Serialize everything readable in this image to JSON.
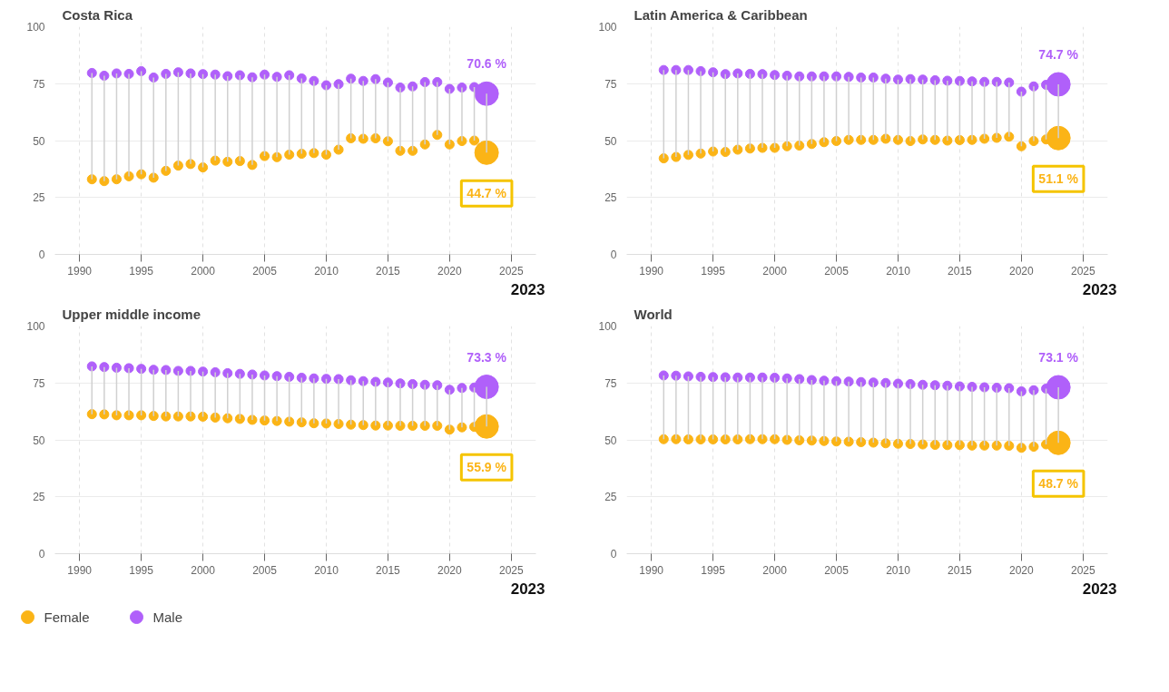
{
  "chart_data": [
    {
      "type": "bubble",
      "title": "Costa Rica",
      "x": [
        1991,
        1992,
        1993,
        1994,
        1995,
        1996,
        1997,
        1998,
        1999,
        2000,
        2001,
        2002,
        2003,
        2004,
        2005,
        2006,
        2007,
        2008,
        2009,
        2010,
        2011,
        2012,
        2013,
        2014,
        2015,
        2016,
        2017,
        2018,
        2019,
        2020,
        2021,
        2022,
        2023
      ],
      "xlim": [
        1988,
        2027
      ],
      "xticks": [
        1990,
        1995,
        2000,
        2005,
        2010,
        2015,
        2020,
        2025
      ],
      "ylim": [
        0,
        100
      ],
      "yticks": [
        0,
        25,
        50,
        75,
        100
      ],
      "grid": true,
      "annotations": [
        "2023"
      ],
      "series": [
        {
          "color": "#fbb416",
          "values": [
            33.0,
            32.2,
            33.0,
            34.3,
            35.2,
            33.7,
            36.7,
            39.0,
            39.7,
            38.2,
            41.2,
            40.7,
            41.0,
            39.3,
            43.2,
            42.7,
            43.8,
            44.2,
            44.5,
            43.8,
            46.0,
            51.0,
            50.8,
            51.0,
            49.7,
            45.5,
            45.5,
            48.3,
            52.5,
            48.3,
            49.8,
            50.0,
            44.7
          ],
          "sizes": [
            0.15,
            0.15,
            0.15,
            0.15,
            0.15,
            0.15,
            0.15,
            0.15,
            0.15,
            0.15,
            0.15,
            0.15,
            0.15,
            0.15,
            0.15,
            0.15,
            0.15,
            0.15,
            0.15,
            0.15,
            0.15,
            0.15,
            0.15,
            0.15,
            0.15,
            0.15,
            0.15,
            0.15,
            0.15,
            0.15,
            0.15,
            0.15,
            1
          ],
          "errors": [
            [
              33.0,
              79.7
            ],
            [
              32.2,
              78.5
            ],
            [
              33.0,
              79.5
            ],
            [
              34.3,
              79.3
            ],
            [
              35.2,
              80.5
            ],
            [
              33.7,
              77.7
            ],
            [
              36.7,
              79.3
            ],
            [
              39.0,
              80.0
            ],
            [
              39.7,
              79.5
            ],
            [
              38.2,
              79.2
            ],
            [
              41.2,
              79.0
            ],
            [
              40.7,
              78.3
            ],
            [
              41.0,
              78.7
            ],
            [
              39.3,
              77.8
            ],
            [
              43.2,
              79.0
            ],
            [
              42.7,
              78.0
            ],
            [
              43.8,
              78.7
            ],
            [
              44.2,
              77.3
            ],
            [
              44.5,
              76.2
            ],
            [
              43.8,
              74.3
            ],
            [
              46.0,
              74.8
            ],
            [
              51.0,
              77.2
            ],
            [
              50.8,
              76.2
            ],
            [
              51.0,
              77.0
            ],
            [
              49.7,
              75.5
            ],
            [
              45.5,
              73.3
            ],
            [
              45.5,
              73.8
            ],
            [
              48.3,
              75.7
            ],
            [
              52.5,
              75.7
            ],
            [
              48.3,
              72.7
            ],
            [
              49.8,
              73.3
            ],
            [
              50.0,
              73.5
            ],
            [
              44.7,
              70.6
            ]
          ],
          "value_labels": [
            null,
            null,
            null,
            null,
            null,
            null,
            null,
            null,
            null,
            null,
            null,
            null,
            null,
            null,
            null,
            null,
            null,
            null,
            null,
            null,
            null,
            null,
            null,
            null,
            null,
            null,
            null,
            null,
            null,
            null,
            null,
            null,
            "44.7 %"
          ]
        },
        {
          "color": "#b060fa",
          "values": [
            79.7,
            78.5,
            79.5,
            79.3,
            80.5,
            77.7,
            79.3,
            80.0,
            79.5,
            79.2,
            79.0,
            78.3,
            78.7,
            77.8,
            79.0,
            78.0,
            78.7,
            77.3,
            76.2,
            74.3,
            74.8,
            77.2,
            76.2,
            77.0,
            75.5,
            73.3,
            73.8,
            75.7,
            75.7,
            72.7,
            73.3,
            73.5,
            70.6
          ],
          "sizes": [
            0.15,
            0.15,
            0.15,
            0.15,
            0.15,
            0.15,
            0.15,
            0.15,
            0.15,
            0.15,
            0.15,
            0.15,
            0.15,
            0.15,
            0.15,
            0.15,
            0.15,
            0.15,
            0.15,
            0.15,
            0.15,
            0.15,
            0.15,
            0.15,
            0.15,
            0.15,
            0.15,
            0.15,
            0.15,
            0.15,
            0.15,
            0.15,
            1
          ],
          "value_labels": [
            null,
            null,
            null,
            null,
            null,
            null,
            null,
            null,
            null,
            null,
            null,
            null,
            null,
            null,
            null,
            null,
            null,
            null,
            null,
            null,
            null,
            null,
            null,
            null,
            null,
            null,
            null,
            null,
            null,
            null,
            null,
            null,
            "70.6 %"
          ]
        }
      ]
    },
    {
      "type": "bubble",
      "title": "Latin America & Caribbean",
      "x": [
        1991,
        1992,
        1993,
        1994,
        1995,
        1996,
        1997,
        1998,
        1999,
        2000,
        2001,
        2002,
        2003,
        2004,
        2005,
        2006,
        2007,
        2008,
        2009,
        2010,
        2011,
        2012,
        2013,
        2014,
        2015,
        2016,
        2017,
        2018,
        2019,
        2020,
        2021,
        2022,
        2023
      ],
      "xlim": [
        1988,
        2027
      ],
      "xticks": [
        1990,
        1995,
        2000,
        2005,
        2010,
        2015,
        2020,
        2025
      ],
      "ylim": [
        0,
        100
      ],
      "yticks": [
        0,
        25,
        50,
        75,
        100
      ],
      "grid": true,
      "annotations": [
        "2023"
      ],
      "series": [
        {
          "color": "#fbb416",
          "values": [
            42.2,
            42.8,
            43.7,
            44.3,
            45.2,
            45.0,
            46.0,
            46.5,
            46.8,
            46.8,
            47.5,
            47.8,
            48.5,
            49.3,
            49.8,
            50.3,
            50.3,
            50.3,
            50.8,
            50.3,
            49.8,
            50.5,
            50.3,
            50.0,
            50.2,
            50.3,
            50.8,
            51.2,
            51.7,
            47.5,
            49.8,
            50.5,
            51.1
          ],
          "sizes": [
            0.15,
            0.15,
            0.15,
            0.15,
            0.15,
            0.15,
            0.15,
            0.15,
            0.15,
            0.15,
            0.15,
            0.15,
            0.15,
            0.15,
            0.15,
            0.15,
            0.15,
            0.15,
            0.15,
            0.15,
            0.15,
            0.15,
            0.15,
            0.15,
            0.15,
            0.15,
            0.15,
            0.15,
            0.15,
            0.15,
            0.15,
            0.15,
            1
          ],
          "errors": [
            [
              42.2,
              81.0
            ],
            [
              42.8,
              81.0
            ],
            [
              43.7,
              81.0
            ],
            [
              44.3,
              80.5
            ],
            [
              45.2,
              80.0
            ],
            [
              45.0,
              79.2
            ],
            [
              46.0,
              79.5
            ],
            [
              46.5,
              79.3
            ],
            [
              46.8,
              79.2
            ],
            [
              46.8,
              78.8
            ],
            [
              47.5,
              78.5
            ],
            [
              47.8,
              78.2
            ],
            [
              48.5,
              78.2
            ],
            [
              49.3,
              78.2
            ],
            [
              49.8,
              78.2
            ],
            [
              50.3,
              78.0
            ],
            [
              50.3,
              77.7
            ],
            [
              50.3,
              77.7
            ],
            [
              50.8,
              77.2
            ],
            [
              50.3,
              76.8
            ],
            [
              49.8,
              77.0
            ],
            [
              50.5,
              76.8
            ],
            [
              50.3,
              76.5
            ],
            [
              50.0,
              76.3
            ],
            [
              50.2,
              76.2
            ],
            [
              50.3,
              76.0
            ],
            [
              50.8,
              75.8
            ],
            [
              51.2,
              75.8
            ],
            [
              51.7,
              75.5
            ],
            [
              47.5,
              71.5
            ],
            [
              49.8,
              73.8
            ],
            [
              50.5,
              74.5
            ],
            [
              51.1,
              74.7
            ]
          ],
          "value_labels": [
            null,
            null,
            null,
            null,
            null,
            null,
            null,
            null,
            null,
            null,
            null,
            null,
            null,
            null,
            null,
            null,
            null,
            null,
            null,
            null,
            null,
            null,
            null,
            null,
            null,
            null,
            null,
            null,
            null,
            null,
            null,
            null,
            "51.1 %"
          ]
        },
        {
          "color": "#b060fa",
          "values": [
            81.0,
            81.0,
            81.0,
            80.5,
            80.0,
            79.2,
            79.5,
            79.3,
            79.2,
            78.8,
            78.5,
            78.2,
            78.2,
            78.2,
            78.2,
            78.0,
            77.7,
            77.7,
            77.2,
            76.8,
            77.0,
            76.8,
            76.5,
            76.3,
            76.2,
            76.0,
            75.8,
            75.8,
            75.5,
            71.5,
            73.8,
            74.5,
            74.7
          ],
          "sizes": [
            0.15,
            0.15,
            0.15,
            0.15,
            0.15,
            0.15,
            0.15,
            0.15,
            0.15,
            0.15,
            0.15,
            0.15,
            0.15,
            0.15,
            0.15,
            0.15,
            0.15,
            0.15,
            0.15,
            0.15,
            0.15,
            0.15,
            0.15,
            0.15,
            0.15,
            0.15,
            0.15,
            0.15,
            0.15,
            0.15,
            0.15,
            0.15,
            1
          ],
          "value_labels": [
            null,
            null,
            null,
            null,
            null,
            null,
            null,
            null,
            null,
            null,
            null,
            null,
            null,
            null,
            null,
            null,
            null,
            null,
            null,
            null,
            null,
            null,
            null,
            null,
            null,
            null,
            null,
            null,
            null,
            null,
            null,
            null,
            "74.7 %"
          ]
        }
      ]
    },
    {
      "type": "bubble",
      "title": "Upper middle income",
      "x": [
        1991,
        1992,
        1993,
        1994,
        1995,
        1996,
        1997,
        1998,
        1999,
        2000,
        2001,
        2002,
        2003,
        2004,
        2005,
        2006,
        2007,
        2008,
        2009,
        2010,
        2011,
        2012,
        2013,
        2014,
        2015,
        2016,
        2017,
        2018,
        2019,
        2020,
        2021,
        2022,
        2023
      ],
      "xlim": [
        1988,
        2027
      ],
      "xticks": [
        1990,
        1995,
        2000,
        2005,
        2010,
        2015,
        2020,
        2025
      ],
      "ylim": [
        0,
        100
      ],
      "yticks": [
        0,
        25,
        50,
        75,
        100
      ],
      "grid": true,
      "legend": "bottom left",
      "annotations": [
        "2023"
      ],
      "series": [
        {
          "name": "Female",
          "color": "#fbb416",
          "values": [
            61.3,
            61.2,
            60.8,
            60.8,
            60.8,
            60.5,
            60.3,
            60.3,
            60.3,
            60.2,
            59.8,
            59.5,
            59.2,
            58.8,
            58.5,
            58.3,
            58.0,
            57.7,
            57.3,
            57.2,
            57.0,
            56.7,
            56.5,
            56.3,
            56.3,
            56.2,
            56.2,
            56.2,
            56.2,
            54.5,
            55.5,
            55.7,
            55.9
          ],
          "sizes": [
            0.15,
            0.15,
            0.15,
            0.15,
            0.15,
            0.15,
            0.15,
            0.15,
            0.15,
            0.15,
            0.15,
            0.15,
            0.15,
            0.15,
            0.15,
            0.15,
            0.15,
            0.15,
            0.15,
            0.15,
            0.15,
            0.15,
            0.15,
            0.15,
            0.15,
            0.15,
            0.15,
            0.15,
            0.15,
            0.15,
            0.15,
            0.15,
            1
          ],
          "errors": [
            [
              61.3,
              82.3
            ],
            [
              61.2,
              82.0
            ],
            [
              60.8,
              81.7
            ],
            [
              60.8,
              81.5
            ],
            [
              60.8,
              81.2
            ],
            [
              60.5,
              80.8
            ],
            [
              60.3,
              80.7
            ],
            [
              60.3,
              80.3
            ],
            [
              60.3,
              80.3
            ],
            [
              60.2,
              80.0
            ],
            [
              59.8,
              79.7
            ],
            [
              59.5,
              79.3
            ],
            [
              59.2,
              79.0
            ],
            [
              58.8,
              78.7
            ],
            [
              58.5,
              78.3
            ],
            [
              58.3,
              78.0
            ],
            [
              58.0,
              77.7
            ],
            [
              57.7,
              77.3
            ],
            [
              57.3,
              77.0
            ],
            [
              57.2,
              76.8
            ],
            [
              57.0,
              76.7
            ],
            [
              56.7,
              76.2
            ],
            [
              56.5,
              75.8
            ],
            [
              56.3,
              75.5
            ],
            [
              56.3,
              75.2
            ],
            [
              56.2,
              74.8
            ],
            [
              56.2,
              74.5
            ],
            [
              56.2,
              74.2
            ],
            [
              56.2,
              74.0
            ],
            [
              54.5,
              72.0
            ],
            [
              55.5,
              72.8
            ],
            [
              55.7,
              73.0
            ],
            [
              55.9,
              73.3
            ]
          ],
          "value_labels": [
            null,
            null,
            null,
            null,
            null,
            null,
            null,
            null,
            null,
            null,
            null,
            null,
            null,
            null,
            null,
            null,
            null,
            null,
            null,
            null,
            null,
            null,
            null,
            null,
            null,
            null,
            null,
            null,
            null,
            null,
            null,
            null,
            "55.9 %"
          ]
        },
        {
          "name": "Male",
          "color": "#b060fa",
          "values": [
            82.3,
            82.0,
            81.7,
            81.5,
            81.2,
            80.8,
            80.7,
            80.3,
            80.3,
            80.0,
            79.7,
            79.3,
            79.0,
            78.7,
            78.3,
            78.0,
            77.7,
            77.3,
            77.0,
            76.8,
            76.7,
            76.2,
            75.8,
            75.5,
            75.2,
            74.8,
            74.5,
            74.2,
            74.0,
            72.0,
            72.8,
            73.0,
            73.3
          ],
          "sizes": [
            0.15,
            0.15,
            0.15,
            0.15,
            0.15,
            0.15,
            0.15,
            0.15,
            0.15,
            0.15,
            0.15,
            0.15,
            0.15,
            0.15,
            0.15,
            0.15,
            0.15,
            0.15,
            0.15,
            0.15,
            0.15,
            0.15,
            0.15,
            0.15,
            0.15,
            0.15,
            0.15,
            0.15,
            0.15,
            0.15,
            0.15,
            0.15,
            1
          ],
          "value_labels": [
            null,
            null,
            null,
            null,
            null,
            null,
            null,
            null,
            null,
            null,
            null,
            null,
            null,
            null,
            null,
            null,
            null,
            null,
            null,
            null,
            null,
            null,
            null,
            null,
            null,
            null,
            null,
            null,
            null,
            null,
            null,
            null,
            "73.3 %"
          ]
        }
      ]
    },
    {
      "type": "bubble",
      "title": "World",
      "x": [
        1991,
        1992,
        1993,
        1994,
        1995,
        1996,
        1997,
        1998,
        1999,
        2000,
        2001,
        2002,
        2003,
        2004,
        2005,
        2006,
        2007,
        2008,
        2009,
        2010,
        2011,
        2012,
        2013,
        2014,
        2015,
        2016,
        2017,
        2018,
        2019,
        2020,
        2021,
        2022,
        2023
      ],
      "xlim": [
        1988,
        2027
      ],
      "xticks": [
        1990,
        1995,
        2000,
        2005,
        2010,
        2015,
        2020,
        2025
      ],
      "ylim": [
        0,
        100
      ],
      "yticks": [
        0,
        25,
        50,
        75,
        100
      ],
      "grid": true,
      "annotations": [
        "2023"
      ],
      "series": [
        {
          "color": "#fbb416",
          "values": [
            50.3,
            50.3,
            50.2,
            50.2,
            50.2,
            50.2,
            50.2,
            50.3,
            50.3,
            50.3,
            50.0,
            49.8,
            49.7,
            49.5,
            49.3,
            49.2,
            49.0,
            48.8,
            48.5,
            48.3,
            48.2,
            48.0,
            47.8,
            47.7,
            47.7,
            47.5,
            47.5,
            47.5,
            47.4,
            46.5,
            47.0,
            48.0,
            48.7
          ],
          "sizes": [
            0.15,
            0.15,
            0.15,
            0.15,
            0.15,
            0.15,
            0.15,
            0.15,
            0.15,
            0.15,
            0.15,
            0.15,
            0.15,
            0.15,
            0.15,
            0.15,
            0.15,
            0.15,
            0.15,
            0.15,
            0.15,
            0.15,
            0.15,
            0.15,
            0.15,
            0.15,
            0.15,
            0.15,
            0.15,
            0.15,
            0.15,
            0.15,
            1
          ],
          "errors": [
            [
              50.3,
              78.3
            ],
            [
              50.3,
              78.2
            ],
            [
              50.2,
              77.9
            ],
            [
              50.2,
              77.7
            ],
            [
              50.2,
              77.6
            ],
            [
              50.2,
              77.5
            ],
            [
              50.2,
              77.4
            ],
            [
              50.3,
              77.4
            ],
            [
              50.3,
              77.4
            ],
            [
              50.3,
              77.3
            ],
            [
              50.0,
              77.0
            ],
            [
              49.8,
              76.7
            ],
            [
              49.7,
              76.3
            ],
            [
              49.5,
              76.0
            ],
            [
              49.3,
              75.8
            ],
            [
              49.2,
              75.6
            ],
            [
              49.0,
              75.4
            ],
            [
              48.8,
              75.2
            ],
            [
              48.5,
              75.0
            ],
            [
              48.3,
              74.7
            ],
            [
              48.2,
              74.5
            ],
            [
              48.0,
              74.2
            ],
            [
              47.8,
              74.0
            ],
            [
              47.7,
              73.8
            ],
            [
              47.7,
              73.5
            ],
            [
              47.5,
              73.3
            ],
            [
              47.5,
              73.1
            ],
            [
              47.5,
              72.9
            ],
            [
              47.4,
              72.7
            ],
            [
              46.5,
              71.3
            ],
            [
              47.0,
              71.8
            ],
            [
              48.0,
              72.5
            ],
            [
              48.7,
              73.1
            ]
          ],
          "value_labels": [
            null,
            null,
            null,
            null,
            null,
            null,
            null,
            null,
            null,
            null,
            null,
            null,
            null,
            null,
            null,
            null,
            null,
            null,
            null,
            null,
            null,
            null,
            null,
            null,
            null,
            null,
            null,
            null,
            null,
            null,
            null,
            null,
            "48.7 %"
          ]
        },
        {
          "color": "#b060fa",
          "values": [
            78.3,
            78.2,
            77.9,
            77.7,
            77.6,
            77.5,
            77.4,
            77.4,
            77.4,
            77.3,
            77.0,
            76.7,
            76.3,
            76.0,
            75.8,
            75.6,
            75.4,
            75.2,
            75.0,
            74.7,
            74.5,
            74.2,
            74.0,
            73.8,
            73.5,
            73.3,
            73.1,
            72.9,
            72.7,
            71.3,
            71.8,
            72.5,
            73.1
          ],
          "sizes": [
            0.15,
            0.15,
            0.15,
            0.15,
            0.15,
            0.15,
            0.15,
            0.15,
            0.15,
            0.15,
            0.15,
            0.15,
            0.15,
            0.15,
            0.15,
            0.15,
            0.15,
            0.15,
            0.15,
            0.15,
            0.15,
            0.15,
            0.15,
            0.15,
            0.15,
            0.15,
            0.15,
            0.15,
            0.15,
            0.15,
            0.15,
            0.15,
            1
          ],
          "value_labels": [
            null,
            null,
            null,
            null,
            null,
            null,
            null,
            null,
            null,
            null,
            null,
            null,
            null,
            null,
            null,
            null,
            null,
            null,
            null,
            null,
            null,
            null,
            null,
            null,
            null,
            null,
            null,
            null,
            null,
            null,
            null,
            null,
            "73.1 %"
          ]
        }
      ]
    }
  ]
}
